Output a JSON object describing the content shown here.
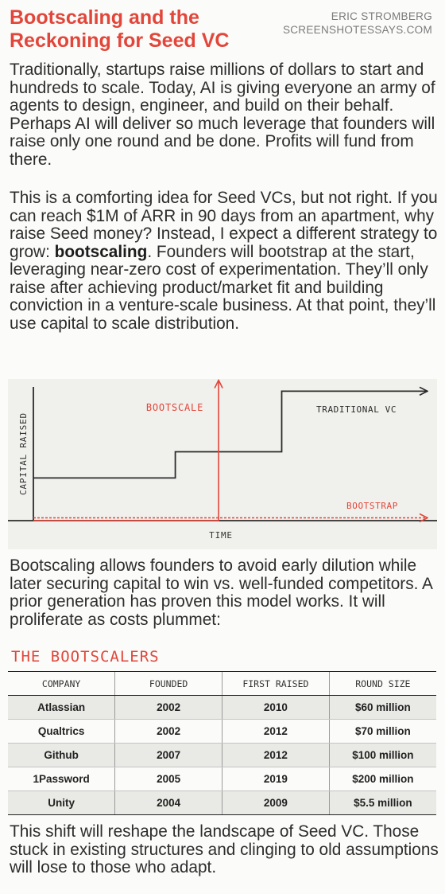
{
  "header": {
    "title": "Bootscaling and the Reckoning for Seed VC",
    "author": "ERIC STROMBERG",
    "site": "SCREENSHOTESSAYS.COM"
  },
  "paragraphs": {
    "p1": "Traditionally, startups raise millions of dollars to start and hundreds to scale. Today, AI is giving everyone an army of agents to design, engineer, and build on their behalf. Perhaps AI will deliver so much leverage that founders will raise only one round and be done. Profits will fund from there.",
    "p2_before": "This is a comforting idea for Seed VCs, but not right. If you can reach $1M of ARR in 90 days from an apartment, why raise Seed money? Instead, I expect a different strategy to grow: ",
    "p2_bold": "bootscaling",
    "p2_after": ". Founders will bootstrap at the start, leveraging near-zero cost of experimentation. They’ll only raise after achieving product/market fit and building conviction in a venture-scale business. At that point, they’ll use capital to scale distribution.",
    "p3": "Bootscaling allows founders to avoid early dilution while later securing capital to win vs. well-funded competitors. A prior generation has proven this model works. It will proliferate as costs plummet:",
    "p4": "This shift will reshape the landscape of Seed VC. Those stuck in existing structures and clinging to old assumptions will lose to those who adapt."
  },
  "chart_data": {
    "type": "line",
    "xlabel": "TIME",
    "ylabel": "CAPITAL RAISED",
    "annotations": [
      "BOOTSCALE",
      "TRADITIONAL VC",
      "BOOTSTRAP"
    ],
    "series": [
      {
        "name": "TRADITIONAL VC",
        "x": [
          0,
          0.36,
          0.36,
          0.63,
          0.63,
          1.0
        ],
        "y": [
          0.31,
          0.31,
          0.5,
          0.5,
          0.94,
          0.94
        ],
        "color": "#2b2b2b"
      },
      {
        "name": "BOOTSTRAP",
        "x": [
          0,
          1.0
        ],
        "y": [
          0.02,
          0.02
        ],
        "color": "#e2463a"
      },
      {
        "name": "BOOTSCALE",
        "x": [
          0,
          0.47,
          0.47
        ],
        "y": [
          0.0,
          0.0,
          1.02
        ],
        "color": "#e2463a"
      }
    ],
    "xlim": [
      0,
      1
    ],
    "ylim": [
      0,
      1
    ],
    "grid": false
  },
  "table": {
    "title": "THE BOOTSCALERS",
    "columns": [
      "COMPANY",
      "FOUNDED",
      "FIRST RAISED",
      "ROUND SIZE"
    ],
    "rows": [
      [
        "Atlassian",
        "2002",
        "2010",
        "$60 million"
      ],
      [
        "Qualtrics",
        "2002",
        "2012",
        "$70 million"
      ],
      [
        "Github",
        "2007",
        "2012",
        "$100 million"
      ],
      [
        "1Password",
        "2005",
        "2019",
        "$200 million"
      ],
      [
        "Unity",
        "2004",
        "2009",
        "$5.5 million"
      ]
    ]
  },
  "colors": {
    "accent": "#e2463a",
    "text": "#2b2b2b",
    "background": "#fbfbf9"
  }
}
